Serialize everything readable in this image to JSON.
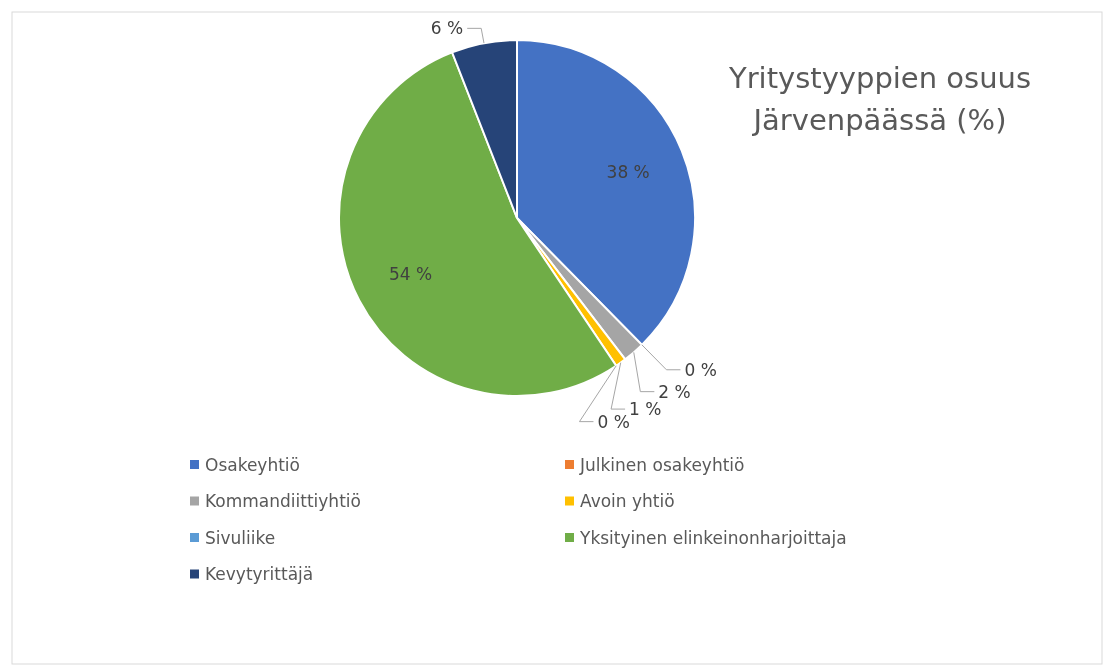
{
  "chart_data": {
    "type": "pie",
    "title": "Yritystyyppien osuus Järvenpäässä (%)",
    "categories": [
      "Osakeyhtiö",
      "Julkinen osakeyhtiö",
      "Kommandiittiyhtiö",
      "Avoin yhtiö",
      "Sivuliike",
      "Yksityinen elinkeinonharjoittaja",
      "Kevytyrittäjä"
    ],
    "values": [
      38,
      0,
      2,
      1,
      0,
      54,
      6
    ],
    "colors": [
      "#4472c4",
      "#ed7d31",
      "#a5a5a5",
      "#ffc000",
      "#5b9bd5",
      "#70ad47",
      "#264478"
    ],
    "value_labels": [
      "38 %",
      "0 %",
      "2 %",
      "1 %",
      "0 %",
      "54 %",
      "6 %"
    ],
    "legend": "bottom"
  }
}
